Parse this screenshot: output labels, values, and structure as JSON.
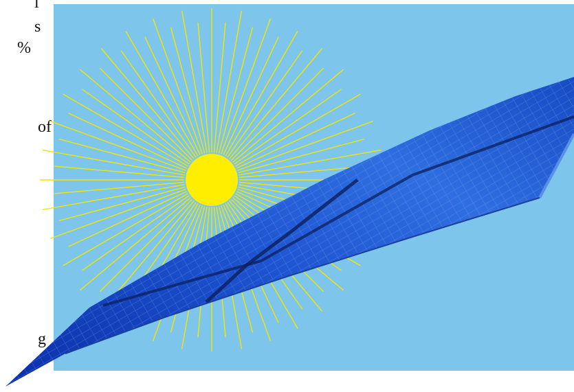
{
  "text_fragments": [
    "l",
    "s",
    "%",
    "of",
    "g"
  ],
  "colors": {
    "sky": "#7ec5eb",
    "sun": "#ffee00",
    "ray": "#f2e600",
    "panel_dark": "#0a2fa8",
    "panel_light": "#2f6fe0",
    "panel_edge": "#5a8fe8",
    "text": "#111111"
  },
  "illustration": {
    "name": "solar-panel-illustration",
    "elements": [
      "sun-icon",
      "sun-ray",
      "solar-panel-icon"
    ]
  }
}
